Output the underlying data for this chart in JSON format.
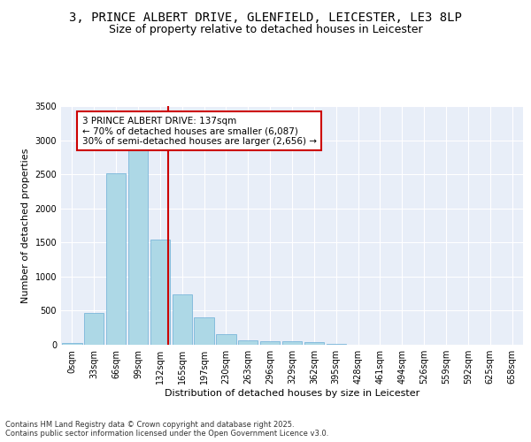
{
  "title": "3, PRINCE ALBERT DRIVE, GLENFIELD, LEICESTER, LE3 8LP",
  "subtitle": "Size of property relative to detached houses in Leicester",
  "xlabel": "Distribution of detached houses by size in Leicester",
  "ylabel": "Number of detached properties",
  "bin_labels": [
    "0sqm",
    "33sqm",
    "66sqm",
    "99sqm",
    "132sqm",
    "165sqm",
    "197sqm",
    "230sqm",
    "263sqm",
    "296sqm",
    "329sqm",
    "362sqm",
    "395sqm",
    "428sqm",
    "461sqm",
    "494sqm",
    "526sqm",
    "559sqm",
    "592sqm",
    "625sqm",
    "658sqm"
  ],
  "bar_values": [
    20,
    470,
    2520,
    2850,
    1540,
    740,
    400,
    155,
    70,
    55,
    55,
    35,
    10,
    5,
    5,
    5,
    0,
    0,
    0,
    0,
    0
  ],
  "bar_color": "#add8e6",
  "bar_edgecolor": "#6baed6",
  "bar_linewidth": 0.5,
  "property_line_x": 4.37,
  "property_line_color": "#cc0000",
  "annotation_text": "3 PRINCE ALBERT DRIVE: 137sqm\n← 70% of detached houses are smaller (6,087)\n30% of semi-detached houses are larger (2,656) →",
  "annotation_box_color": "#ffffff",
  "annotation_box_edgecolor": "#cc0000",
  "ylim": [
    0,
    3500
  ],
  "yticks": [
    0,
    500,
    1000,
    1500,
    2000,
    2500,
    3000,
    3500
  ],
  "background_color": "#e8eef8",
  "grid_color": "#ffffff",
  "footer_text": "Contains HM Land Registry data © Crown copyright and database right 2025.\nContains public sector information licensed under the Open Government Licence v3.0.",
  "title_fontsize": 10,
  "subtitle_fontsize": 9,
  "ylabel_fontsize": 8,
  "xlabel_fontsize": 8,
  "tick_fontsize": 7,
  "footer_fontsize": 6,
  "annotation_fontsize": 7.5
}
